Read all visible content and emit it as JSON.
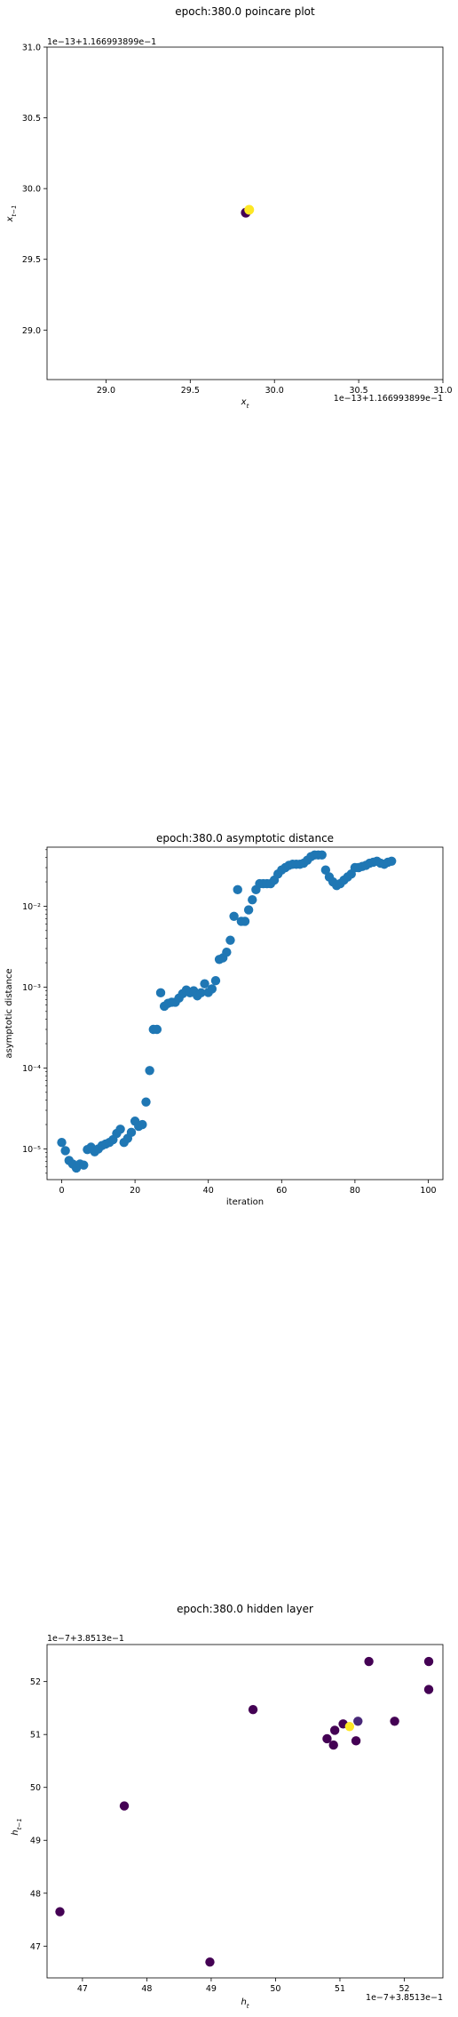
{
  "chart_data": [
    {
      "type": "scatter",
      "title": "epoch:380.0 poincare plot",
      "xlabel": "x_t",
      "ylabel": "x_{t-1}",
      "x_offset_text": "1e−13+1.166993899e−1",
      "y_offset_text": "1e−13+1.166993899e−1",
      "xlim": [
        28.65,
        31.0
      ],
      "ylim": [
        28.65,
        31.0
      ],
      "xticks": [
        "29.0",
        "29.5",
        "30.0",
        "30.5",
        "31.0"
      ],
      "yticks": [
        "29.0",
        "29.5",
        "30.0",
        "30.5",
        "31.0"
      ],
      "points": [
        {
          "x": 29.83,
          "y": 29.83,
          "color": "#440154"
        },
        {
          "x": 29.85,
          "y": 29.85,
          "color": "#fde725"
        }
      ]
    },
    {
      "type": "scatter",
      "title": "epoch:380.0 asymptotic distance",
      "xlabel": "iteration",
      "ylabel": "asymptotic distance",
      "yscale": "log",
      "xlim": [
        -4,
        104
      ],
      "ylim_log10": [
        -5.38,
        -1.27
      ],
      "xticks": [
        "0",
        "20",
        "40",
        "60",
        "80",
        "100"
      ],
      "yticks": [
        "10⁻⁵",
        "10⁻⁴",
        "10⁻³",
        "10⁻²"
      ],
      "color": "#1f77b4",
      "values": [
        1.2e-05,
        9.5e-06,
        7.2e-06,
        6.5e-06,
        5.8e-06,
        6.5e-06,
        6.3e-06,
        9.8e-06,
        1.05e-05,
        9.2e-06,
        1e-05,
        1.1e-05,
        1.15e-05,
        1.2e-05,
        1.3e-05,
        1.55e-05,
        1.75e-05,
        1.2e-05,
        1.35e-05,
        1.6e-05,
        2.2e-05,
        1.9e-05,
        2e-05,
        3.8e-05,
        9.3e-05,
        0.0003,
        0.0003,
        0.00085,
        0.00058,
        0.00063,
        0.00065,
        0.00065,
        0.00073,
        0.00083,
        0.00092,
        0.00085,
        0.0009,
        0.00078,
        0.00085,
        0.0011,
        0.00086,
        0.00095,
        0.0012,
        0.0022,
        0.0023,
        0.0027,
        0.0038,
        0.0075,
        0.016,
        0.0065,
        0.0065,
        0.009,
        0.012,
        0.016,
        0.019,
        0.019,
        0.019,
        0.019,
        0.021,
        0.025,
        0.028,
        0.03,
        0.032,
        0.033,
        0.033,
        0.033,
        0.034,
        0.037,
        0.041,
        0.043,
        0.043,
        0.043,
        0.028,
        0.023,
        0.02,
        0.018,
        0.019,
        0.021,
        0.023,
        0.025,
        0.03,
        0.03,
        0.031,
        0.032,
        0.034,
        0.035,
        0.036,
        0.034,
        0.033,
        0.035,
        0.036
      ]
    },
    {
      "type": "scatter",
      "title": "epoch:380.0 hidden layer",
      "xlabel": "h_t",
      "ylabel": "h_{t-1}",
      "x_offset_text": "1e−7+3.8513e−1",
      "y_offset_text": "1e−7+3.8513e−1",
      "xlim": [
        46.45,
        52.6
      ],
      "ylim": [
        46.4,
        52.7
      ],
      "xticks": [
        "47",
        "48",
        "49",
        "50",
        "51",
        "52"
      ],
      "yticks": [
        "47",
        "48",
        "49",
        "50",
        "51",
        "52"
      ],
      "points": [
        {
          "x": 46.65,
          "y": 47.65,
          "color": "#440154"
        },
        {
          "x": 47.65,
          "y": 49.65,
          "color": "#440154"
        },
        {
          "x": 48.98,
          "y": 46.7,
          "color": "#440154"
        },
        {
          "x": 49.65,
          "y": 51.47,
          "color": "#440154"
        },
        {
          "x": 50.8,
          "y": 50.92,
          "color": "#440154"
        },
        {
          "x": 50.9,
          "y": 50.8,
          "color": "#440154"
        },
        {
          "x": 50.92,
          "y": 51.08,
          "color": "#440154"
        },
        {
          "x": 51.05,
          "y": 51.2,
          "color": "#440154"
        },
        {
          "x": 51.25,
          "y": 50.88,
          "color": "#440154"
        },
        {
          "x": 51.28,
          "y": 51.25,
          "color": "#482878"
        },
        {
          "x": 51.45,
          "y": 52.38,
          "color": "#440154"
        },
        {
          "x": 51.85,
          "y": 51.25,
          "color": "#440154"
        },
        {
          "x": 52.38,
          "y": 52.38,
          "color": "#440154"
        },
        {
          "x": 52.38,
          "y": 51.85,
          "color": "#440154"
        },
        {
          "x": 51.15,
          "y": 51.15,
          "color": "#fde725"
        }
      ]
    }
  ]
}
